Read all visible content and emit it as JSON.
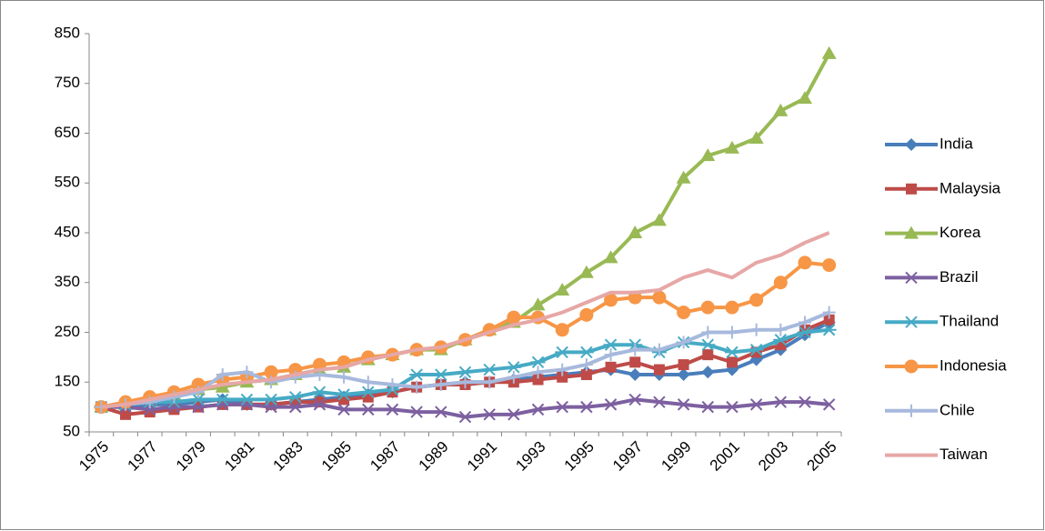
{
  "chart_data": {
    "type": "line",
    "categories": [
      "1975",
      null,
      "1977",
      null,
      "1979",
      null,
      "1981",
      null,
      "1983",
      null,
      "1985",
      null,
      "1987",
      null,
      "1989",
      null,
      "1991",
      null,
      "1993",
      null,
      "1995",
      null,
      "1997",
      null,
      "1999",
      null,
      "2001",
      null,
      "2003",
      null,
      "2005"
    ],
    "ylim": [
      50,
      850
    ],
    "yticks": [
      50,
      150,
      250,
      350,
      450,
      550,
      650,
      750,
      850
    ],
    "legend": "right",
    "series": [
      {
        "name": "India",
        "color": "#4a7ebb",
        "marker": "diamond",
        "values": [
          100,
          100,
          105,
          105,
          110,
          115,
          105,
          105,
          110,
          115,
          120,
          125,
          130,
          140,
          145,
          150,
          150,
          155,
          160,
          165,
          170,
          175,
          165,
          165,
          165,
          170,
          175,
          195,
          215,
          245,
          270
        ]
      },
      {
        "name": "Malaysia",
        "color": "#be4b48",
        "marker": "square",
        "values": [
          100,
          85,
          90,
          95,
          100,
          105,
          105,
          105,
          110,
          110,
          115,
          120,
          130,
          140,
          145,
          145,
          150,
          150,
          155,
          160,
          165,
          180,
          190,
          175,
          185,
          205,
          190,
          210,
          225,
          255,
          275
        ]
      },
      {
        "name": "Korea",
        "color": "#98b954",
        "marker": "triangle",
        "values": [
          100,
          105,
          115,
          125,
          135,
          140,
          150,
          155,
          165,
          175,
          180,
          195,
          205,
          215,
          215,
          235,
          255,
          270,
          305,
          335,
          370,
          400,
          450,
          475,
          560,
          605,
          620,
          640,
          695,
          720,
          810
        ]
      },
      {
        "name": "Brazil",
        "color": "#7d60a0",
        "marker": "x",
        "values": [
          100,
          100,
          95,
          100,
          100,
          105,
          105,
          100,
          100,
          105,
          95,
          95,
          95,
          90,
          90,
          80,
          85,
          85,
          95,
          100,
          100,
          105,
          115,
          110,
          105,
          100,
          100,
          105,
          110,
          110,
          105
        ]
      },
      {
        "name": "Thailand",
        "color": "#46aac5",
        "marker": "star",
        "values": [
          100,
          105,
          110,
          110,
          115,
          115,
          115,
          115,
          120,
          130,
          125,
          130,
          135,
          165,
          165,
          170,
          175,
          180,
          190,
          210,
          210,
          225,
          225,
          210,
          230,
          225,
          210,
          215,
          235,
          250,
          255
        ]
      },
      {
        "name": "Indonesia",
        "color": "#f79646",
        "marker": "circle",
        "values": [
          100,
          110,
          120,
          130,
          145,
          155,
          160,
          170,
          175,
          185,
          190,
          200,
          205,
          215,
          220,
          235,
          255,
          280,
          280,
          255,
          285,
          315,
          320,
          320,
          290,
          300,
          300,
          315,
          350,
          390,
          385
        ]
      },
      {
        "name": "Chile",
        "color": "#a7b9dd",
        "marker": "plus",
        "values": [
          100,
          105,
          110,
          120,
          130,
          165,
          170,
          150,
          160,
          165,
          160,
          150,
          145,
          140,
          145,
          150,
          150,
          160,
          170,
          175,
          185,
          205,
          215,
          215,
          230,
          250,
          250,
          255,
          255,
          270,
          290
        ]
      },
      {
        "name": "Taiwan",
        "color": "#e6a7a6",
        "marker": "none",
        "values": [
          100,
          105,
          115,
          125,
          135,
          145,
          150,
          155,
          165,
          175,
          180,
          195,
          205,
          215,
          220,
          235,
          250,
          265,
          275,
          290,
          310,
          330,
          330,
          335,
          360,
          375,
          360,
          390,
          405,
          430,
          450
        ]
      }
    ]
  }
}
